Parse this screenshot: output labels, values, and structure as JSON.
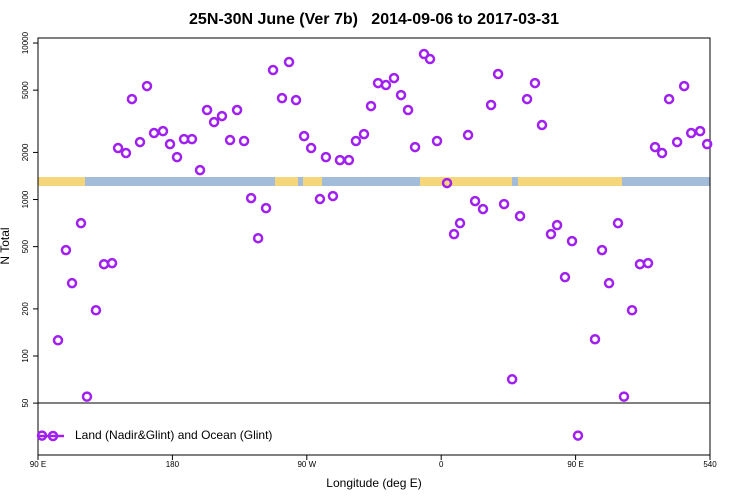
{
  "chart_data": {
    "type": "scatter",
    "title": "25N-30N June (Ver 7b)   2014-09-06 to 2017-03-31",
    "x_label": "Longitude (deg E)",
    "y_label": "N Total",
    "log_y": true,
    "xlim": [
      90,
      540
    ],
    "ylim": [
      23.3,
      10770
    ],
    "xticks": [
      {
        "value": 90,
        "label": "90 E"
      },
      180,
      {
        "value": 270,
        "label": "90 W"
      },
      {
        "value": 360,
        "label": "0"
      },
      {
        "value": 450,
        "label": "90 E"
      },
      540
    ],
    "yticks": [
      50,
      100,
      200,
      500,
      1000,
      2000,
      5000,
      10000
    ],
    "legend": "bottom-left",
    "series": [
      {
        "name": "Land (Nadir&Glint) and Ocean (Glint)",
        "color": "#a020f0",
        "x": [
          92.7,
          103.4,
          108.7,
          112.8,
          118.8,
          122.8,
          128.8,
          134.2,
          139.6,
          143.6,
          148.9,
          152.9,
          158.3,
          163.0,
          167.7,
          173.7,
          178.4,
          183.1,
          187.8,
          193.1,
          198.5,
          203.2,
          207.9,
          213.2,
          218.6,
          223.3,
          228.0,
          232.7,
          237.4,
          242.7,
          247.4,
          253.4,
          258.1,
          262.8,
          268.2,
          272.9,
          278.8,
          282.8,
          287.5,
          292.2,
          298.2,
          302.9,
          308.3,
          313.0,
          317.7,
          323.0,
          328.4,
          333.1,
          337.8,
          342.5,
          348.5,
          352.5,
          357.2,
          363.9,
          368.6,
          372.6,
          378.0,
          382.7,
          388.0,
          393.4,
          398.1,
          402.1,
          407.5,
          412.8,
          417.5,
          422.8,
          427.5,
          433.5,
          437.6,
          442.9,
          447.6,
          451.6,
          463.0,
          467.7,
          472.4,
          478.4,
          482.4,
          487.8,
          493.1,
          498.5,
          503.2,
          507.9,
          512.6,
          518.0,
          522.7,
          527.4,
          533.4,
          538.1
        ],
        "values": [
          31,
          126,
          475,
          292,
          706,
          55,
          196,
          386,
          392,
          2133,
          1982,
          4385,
          2328,
          5309,
          2660,
          2735,
          2259,
          1866,
          2432,
          2432,
          1541,
          3732,
          3126,
          3414,
          2399,
          3732,
          2366,
          1021,
          566,
          881,
          6720,
          4446,
          7560,
          4321,
          2541,
          2133,
          1007,
          1866,
          1052,
          1786,
          1786,
          2366,
          2618,
          3954,
          5548,
          5390,
          5972,
          4651,
          3732,
          2163,
          8505,
          7900,
          2366,
          1274,
          601,
          706,
          2582,
          977,
          869,
          4018,
          6340,
          935,
          71,
          783,
          4385,
          5548,
          2992,
          601,
          686,
          319,
          542,
          31,
          128,
          475,
          292,
          706,
          55,
          196,
          386,
          392,
          2163,
          1982,
          4385,
          2328,
          5309,
          2660,
          2735,
          2259
        ]
      }
    ]
  }
}
